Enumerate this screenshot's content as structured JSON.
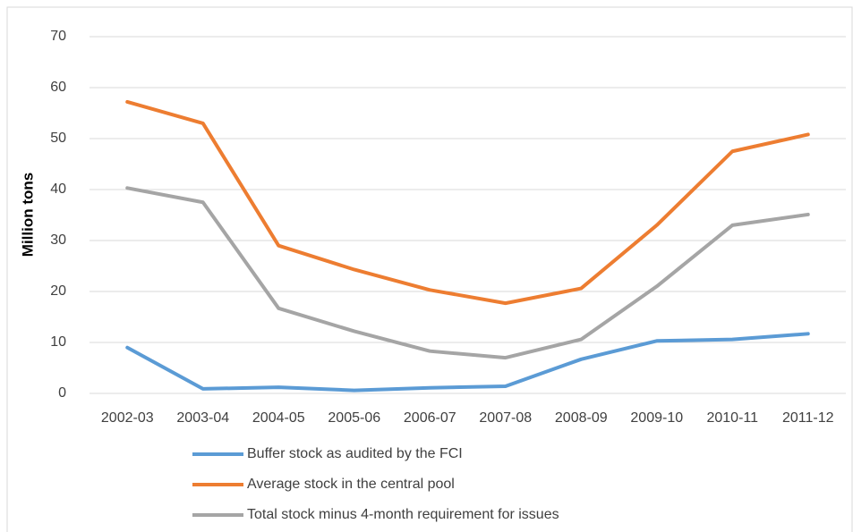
{
  "chart_data": {
    "type": "line",
    "y_label": "Million tons",
    "categories": [
      "2002-03",
      "2003-04",
      "2004-05",
      "2005-06",
      "2006-07",
      "2007-08",
      "2008-09",
      "2009-10",
      "2010-11",
      "2011-12"
    ],
    "series": [
      {
        "name": "Buffer stock as audited by the FCI",
        "color": "#5b9bd5",
        "values": [
          9.0,
          0.9,
          1.2,
          0.6,
          1.1,
          1.4,
          6.7,
          10.3,
          10.6,
          11.7
        ]
      },
      {
        "name": "Average stock in the central pool",
        "color": "#ed7d31",
        "values": [
          57.2,
          53.0,
          29.0,
          24.3,
          20.3,
          17.7,
          20.6,
          33.0,
          47.5,
          50.8
        ]
      },
      {
        "name": "Total stock minus 4-month requirement for issues",
        "color": "#a5a5a5",
        "values": [
          40.3,
          37.5,
          16.7,
          12.2,
          8.3,
          7.0,
          10.6,
          21.0,
          33.0,
          35.1
        ]
      }
    ],
    "ylim": [
      0,
      70
    ],
    "yticks": [
      0,
      10,
      20,
      30,
      40,
      50,
      60,
      70
    ],
    "grid": true,
    "legend": "bottom"
  }
}
